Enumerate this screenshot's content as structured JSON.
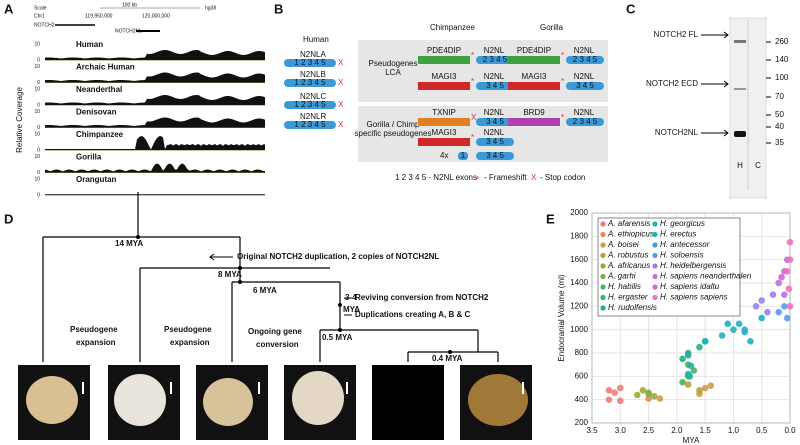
{
  "panel_labels": [
    "A",
    "B",
    "C",
    "D",
    "E"
  ],
  "panel_a": {
    "scale": "Scale",
    "scale_len": "100 kb",
    "assembly": "hg38",
    "chrom": "Chr1",
    "pos1": "119,950,000",
    "pos2": "120,000,000",
    "gene1": "NOTCH2",
    "gene2": "NOTCH2NL",
    "y_label": "Relative Coverage",
    "scale_max": "10",
    "scale_min": "0",
    "tracks": [
      "Human",
      "Archaic Human",
      "Neanderthal",
      "Denisovan",
      "Chimpanzee",
      "Gorilla",
      "Orangutan"
    ]
  },
  "panel_b": {
    "species": [
      "Human",
      "Chimpanzee",
      "Gorilla"
    ],
    "human_genes": [
      "N2NLA",
      "N2NLB",
      "N2NLC",
      "N2NLR"
    ],
    "exons_full": "1 2 3 4 5",
    "exons_partial": "2 3 4 5",
    "exons_short": "3 4 5",
    "exon_one": "1",
    "gene_label": "N2NL",
    "box1": [
      "Pseudogenes",
      "LCA"
    ],
    "box2": [
      "Gorilla / Chimp",
      "specific  pseudogenes"
    ],
    "partners": [
      "PDE4DIP",
      "MAGI3",
      "TXNIP",
      "BRD9"
    ],
    "copies": "4x",
    "legend_exons": "1 2 3 4 5 - N2NL exons",
    "star": "*",
    "frameshift": "- Frameshift",
    "cross": "X",
    "stop": "- Stop codon"
  },
  "panel_c": {
    "bands": [
      "NOTCH2 FL",
      "NOTCH2 ECD",
      "NOTCH2NL"
    ],
    "markers": [
      "260",
      "140",
      "100",
      "70",
      "50",
      "40",
      "35"
    ],
    "lanes": [
      "H",
      "C"
    ]
  },
  "panel_d": {
    "nodes": [
      "14 MYA",
      "8 MYA",
      "6 MYA",
      "3-4",
      "MYA",
      "0.5 MYA",
      "0.4 MYA"
    ],
    "events": [
      "Original NOTCH2 duplication, 2 copies of NOTCH2NL",
      "Reviving conversion from NOTCH2",
      "Duplications creating A, B & C"
    ],
    "labels": [
      "Pseudogene",
      "expansion",
      "Pseudogene",
      "expansion",
      "Ongoing gene",
      "conversion"
    ]
  },
  "chart_data": {
    "type": "scatter",
    "xlabel": "MYA",
    "ylabel": "Endocranial Volume (ml)",
    "xlim": [
      3.5,
      0
    ],
    "ylim": [
      200,
      2000
    ],
    "xticks": [
      {
        "value": 3.5,
        "label": "3.5"
      },
      {
        "value": 3,
        "label": "3.0"
      },
      {
        "value": 2.5,
        "label": "2.5"
      },
      {
        "value": 2,
        "label": "2.0"
      },
      {
        "value": 1.5,
        "label": "1.5"
      },
      {
        "value": 1,
        "label": "1.0"
      },
      {
        "value": 0.5,
        "label": "0.5"
      },
      {
        "value": 0,
        "label": "0.0"
      }
    ],
    "yticks": [
      200,
      400,
      600,
      800,
      1000,
      1200,
      1400,
      1600,
      1800,
      2000
    ],
    "series": [
      {
        "name": "A. afarensis",
        "color": "#f07a7a",
        "x": [
          3.2,
          3.1,
          3.0,
          3.2,
          3.0
        ],
        "values": [
          400,
          460,
          390,
          480,
          500
        ]
      },
      {
        "name": "A. ethiopicus",
        "color": "#e8885a",
        "x": [
          2.5
        ],
        "values": [
          410
        ]
      },
      {
        "name": "A. boisei",
        "color": "#d29a48",
        "x": [
          2.3,
          1.5,
          1.4,
          1.6
        ],
        "values": [
          410,
          500,
          520,
          450
        ]
      },
      {
        "name": "A. robustus",
        "color": "#b8a038",
        "x": [
          1.8,
          1.6
        ],
        "values": [
          530,
          480
        ]
      },
      {
        "name": "A. africanus",
        "color": "#9aa83a",
        "x": [
          2.7,
          2.5,
          2.4,
          2.6
        ],
        "values": [
          440,
          460,
          430,
          480
        ]
      },
      {
        "name": "A. garhi",
        "color": "#7db040",
        "x": [
          2.5
        ],
        "values": [
          450
        ]
      },
      {
        "name": "H. habilis",
        "color": "#4db35a",
        "x": [
          1.8,
          1.7,
          1.9,
          1.8
        ],
        "values": [
          600,
          650,
          550,
          700
        ]
      },
      {
        "name": "H. ergaster",
        "color": "#30b07a",
        "x": [
          1.8,
          1.6,
          1.5
        ],
        "values": [
          800,
          850,
          900
        ]
      },
      {
        "name": "H. rudolfensis",
        "color": "#22b090",
        "x": [
          1.9,
          1.8
        ],
        "values": [
          750,
          780
        ]
      },
      {
        "name": "H. georgicus",
        "color": "#20b4a8",
        "x": [
          1.8,
          1.75,
          1.77
        ],
        "values": [
          620,
          690,
          600
        ]
      },
      {
        "name": "H. erectus",
        "color": "#20b0c0",
        "x": [
          1.5,
          1.2,
          1.0,
          0.9,
          0.8,
          0.7,
          0.5,
          1.1
        ],
        "values": [
          900,
          950,
          1000,
          1050,
          980,
          900,
          1100,
          1050
        ]
      },
      {
        "name": "H. antecessor",
        "color": "#30a8d8",
        "x": [
          0.8
        ],
        "values": [
          1000
        ]
      },
      {
        "name": "H. soloensis",
        "color": "#5a9ae8",
        "x": [
          0.1,
          0.05,
          0.2
        ],
        "values": [
          1200,
          1100,
          1150
        ]
      },
      {
        "name": "H. heidelbergensis",
        "color": "#9a80e8",
        "x": [
          0.6,
          0.5,
          0.3,
          0.4
        ],
        "values": [
          1200,
          1250,
          1300,
          1150
        ]
      },
      {
        "name": "H. sapiens neanderthalen",
        "color": "#c070e0",
        "x": [
          0.1,
          0.05,
          0.2,
          0.1
        ],
        "values": [
          1500,
          1600,
          1400,
          1300
        ]
      },
      {
        "name": "H. sapiens idaltu",
        "color": "#e060d0",
        "x": [
          0.15
        ],
        "values": [
          1450
        ]
      },
      {
        "name": "H. sapiens sapiens",
        "color": "#f070c0",
        "x": [
          0,
          0,
          0.05,
          0.02,
          0
        ],
        "values": [
          1750,
          1600,
          1500,
          1350,
          1200
        ]
      }
    ]
  }
}
